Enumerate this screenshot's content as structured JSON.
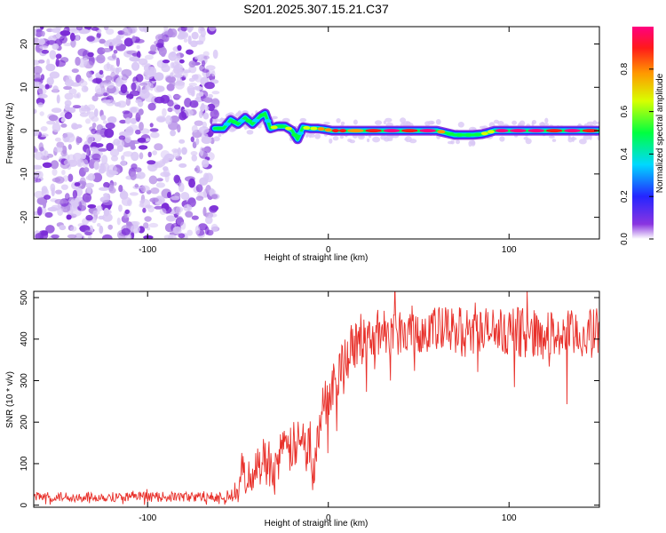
{
  "title": "S201.2025.307.15.21.C37",
  "colors": {
    "snr_line": "#e8302a",
    "axis": "#000000",
    "noise_light": "#d9c8f5",
    "noise_mid": "#b48ce6",
    "noise_dark": "#7a2bd6"
  },
  "chart_data": [
    {
      "type": "heatmap",
      "title": "S201.2025.307.15.21.C37",
      "xlabel": "Height of straight line (km)",
      "ylabel": "Frequency (Hz)",
      "xlim": [
        -163,
        150
      ],
      "ylim": [
        -25,
        24
      ],
      "xticks": [
        -100,
        0,
        100
      ],
      "yticks": [
        -20,
        -10,
        0,
        10,
        20
      ],
      "xtick_labels": [
        "-100",
        "0",
        "100"
      ],
      "ytick_labels": [
        "-20",
        "-10",
        "0",
        "10",
        "20"
      ],
      "noise_region_x": [
        -163,
        -62
      ],
      "ridge": {
        "x": [
          -63,
          -58,
          -54,
          -50,
          -46,
          -42,
          -38,
          -35,
          -32,
          -28,
          -24,
          -20,
          -17,
          -14,
          -10,
          -6,
          -2,
          2,
          6,
          10,
          20,
          30,
          40,
          50,
          60,
          65,
          70,
          75,
          80,
          85,
          88,
          92,
          100,
          110,
          120,
          130,
          140,
          150
        ],
        "y": [
          0.5,
          0.5,
          2.5,
          1.5,
          3,
          1.5,
          3.2,
          4,
          0.5,
          1,
          1,
          0,
          -2,
          0.8,
          0.5,
          0.5,
          0.3,
          0,
          0,
          0,
          0,
          0,
          0,
          0,
          0,
          -0.5,
          -1,
          -1,
          -1,
          -0.8,
          -0.5,
          0,
          0,
          0,
          0,
          0,
          0,
          0
        ],
        "amplitude": [
          0.4,
          0.35,
          0.4,
          0.3,
          0.45,
          0.35,
          0.5,
          0.3,
          0.55,
          0.45,
          0.6,
          0.4,
          0.3,
          0.55,
          0.6,
          0.7,
          0.75,
          0.8,
          0.85,
          0.75,
          0.9,
          0.95,
          0.9,
          0.95,
          0.7,
          0.5,
          0.4,
          0.45,
          0.5,
          0.55,
          0.6,
          0.95,
          1.0,
          1.0,
          0.9,
          0.95,
          0.9,
          0.85
        ]
      },
      "colorbar": {
        "label": "Normalized spectral amplitude",
        "range": [
          0.0,
          1.0
        ],
        "ticks": [
          0.0,
          0.2,
          0.4,
          0.6,
          0.8
        ],
        "tick_labels": [
          "0.0",
          "0.2",
          "0.4",
          "0.6",
          "0.8"
        ]
      }
    },
    {
      "type": "line",
      "xlabel": "Height of straight line (km)",
      "ylabel": "SNR (10 * v/v)",
      "xlim": [
        -163,
        150
      ],
      "ylim": [
        -5,
        515
      ],
      "xticks": [
        -100,
        0,
        100
      ],
      "yticks": [
        0,
        100,
        200,
        300,
        400,
        500
      ],
      "xtick_labels": [
        "-100",
        "0",
        "100"
      ],
      "ytick_labels": [
        "0",
        "100",
        "200",
        "300",
        "400",
        "500"
      ],
      "series": [
        {
          "name": "SNR",
          "x": [
            -163,
            -120,
            -80,
            -58,
            -50,
            -48,
            -45,
            -40,
            -35,
            -30,
            -25,
            -20,
            -15,
            -10,
            -8,
            -5,
            0,
            5,
            10,
            15,
            20,
            25,
            30,
            40,
            50,
            60,
            70,
            80,
            90,
            100,
            110,
            120,
            130,
            140,
            150
          ],
          "y": [
            20,
            20,
            20,
            20,
            25,
            90,
            60,
            90,
            110,
            100,
            120,
            140,
            150,
            150,
            60,
            200,
            270,
            320,
            360,
            380,
            400,
            410,
            420,
            420,
            425,
            420,
            420,
            415,
            420,
            420,
            415,
            410,
            410,
            410,
            415
          ],
          "noise_amplitude": [
            12,
            12,
            12,
            12,
            25,
            40,
            40,
            50,
            60,
            60,
            60,
            60,
            60,
            60,
            60,
            60,
            60,
            60,
            60,
            60,
            60,
            60,
            60,
            60,
            60,
            60,
            60,
            60,
            60,
            60,
            60,
            60,
            60,
            60,
            60
          ]
        }
      ]
    }
  ]
}
